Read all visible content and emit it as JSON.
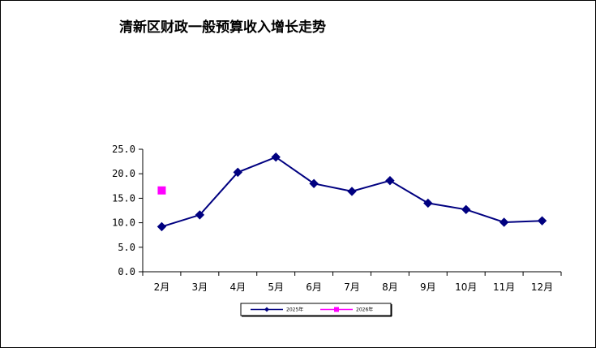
{
  "chart_data": {
    "type": "line",
    "title": "清新区财政一般预算收入增长走势",
    "categories": [
      "2月",
      "3月",
      "4月",
      "5月",
      "6月",
      "7月",
      "8月",
      "9月",
      "10月",
      "11月",
      "12月"
    ],
    "ylim": [
      0,
      25
    ],
    "yticks": [
      "0.0",
      "5.0",
      "10.0",
      "15.0",
      "20.0",
      "25.0"
    ],
    "ytick_values": [
      0,
      5,
      10,
      15,
      20,
      25
    ],
    "grid": false,
    "legend_position": "bottom",
    "series": [
      {
        "name": "2025年",
        "color": "#000080",
        "marker": "diamond",
        "values": [
          9.2,
          11.6,
          20.3,
          23.4,
          18.0,
          16.4,
          18.6,
          14.0,
          12.7,
          10.1,
          10.4
        ]
      },
      {
        "name": "2026年",
        "color": "#ff00ff",
        "marker": "square",
        "values": [
          16.6,
          null,
          null,
          null,
          null,
          null,
          null,
          null,
          null,
          null,
          null
        ]
      }
    ]
  }
}
